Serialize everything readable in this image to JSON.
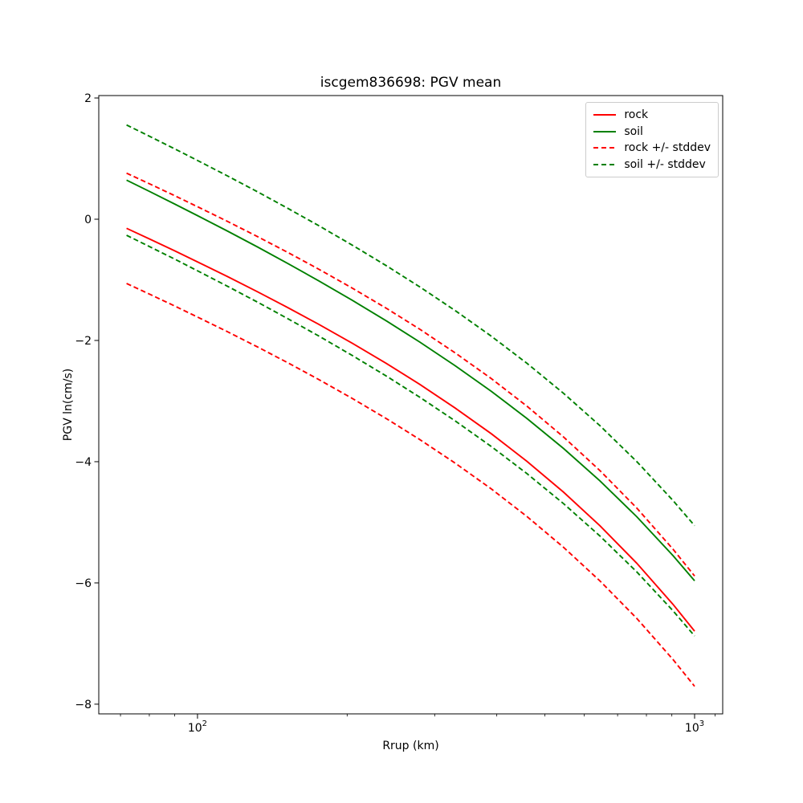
{
  "chart": {
    "title": "iscgem836698: PGV mean",
    "xlabel": "Rrup (km)",
    "ylabel": "PGV ln(cm/s)"
  },
  "chart_data": {
    "type": "line",
    "title": "iscgem836698: PGV mean",
    "xlabel": "Rrup (km)",
    "ylabel": "PGV ln(cm/s)",
    "x_scale": "log",
    "y_scale": "linear",
    "xlim": [
      63.3,
      1139
    ],
    "ylim": [
      -8.16,
      2.04
    ],
    "grid": false,
    "legend_position": "upper right",
    "stddev": 0.91,
    "y_ticks": [
      2,
      0,
      -2,
      -4,
      -6,
      -8
    ],
    "x_major_ticks": [
      {
        "value": 100,
        "base": "10",
        "exp": "2"
      },
      {
        "value": 1000,
        "base": "10",
        "exp": "3"
      }
    ],
    "x_minor_ticks": [
      70,
      80,
      90,
      200,
      300,
      400,
      500,
      600,
      700,
      800,
      900,
      1100
    ],
    "x": [
      72,
      80,
      90,
      100,
      115,
      132,
      152,
      175,
      205,
      240,
      280,
      330,
      390,
      460,
      545,
      645,
      765,
      905,
      1000
    ],
    "series": [
      {
        "id": "rock-mean",
        "color": "#ff0000",
        "style": "solid",
        "values": [
          -0.15,
          -0.324,
          -0.522,
          -0.703,
          -0.947,
          -1.196,
          -1.458,
          -1.73,
          -2.048,
          -2.381,
          -2.725,
          -3.115,
          -3.54,
          -3.994,
          -4.502,
          -5.056,
          -5.675,
          -6.354,
          -6.795
        ]
      },
      {
        "id": "soil-mean",
        "color": "#008000",
        "style": "solid",
        "values": [
          0.645,
          0.46,
          0.251,
          0.06,
          -0.197,
          -0.457,
          -0.731,
          -1.012,
          -1.339,
          -1.678,
          -2.027,
          -2.418,
          -2.84,
          -3.287,
          -3.782,
          -4.316,
          -4.908,
          -5.551,
          -5.965
        ]
      },
      {
        "id": "rock-plus-stddev",
        "color": "#ff0000",
        "style": "dashed",
        "values": [
          0.76,
          0.586,
          0.388,
          0.207,
          -0.037,
          -0.286,
          -0.548,
          -0.82,
          -1.138,
          -1.471,
          -1.815,
          -2.205,
          -2.63,
          -3.084,
          -3.592,
          -4.146,
          -4.765,
          -5.444,
          -5.885
        ]
      },
      {
        "id": "rock-minus-stddev",
        "color": "#ff0000",
        "style": "dashed",
        "values": [
          -1.06,
          -1.234,
          -1.432,
          -1.613,
          -1.857,
          -2.106,
          -2.368,
          -2.64,
          -2.958,
          -3.291,
          -3.635,
          -4.025,
          -4.45,
          -4.904,
          -5.412,
          -5.966,
          -6.585,
          -7.264,
          -7.705
        ]
      },
      {
        "id": "soil-plus-stddev",
        "color": "#008000",
        "style": "dashed",
        "values": [
          1.555,
          1.37,
          1.161,
          0.97,
          0.713,
          0.453,
          0.179,
          -0.102,
          -0.429,
          -0.768,
          -1.117,
          -1.508,
          -1.93,
          -2.377,
          -2.872,
          -3.406,
          -3.998,
          -4.641,
          -5.055
        ]
      },
      {
        "id": "soil-minus-stddev",
        "color": "#008000",
        "style": "dashed",
        "values": [
          -0.265,
          -0.45,
          -0.659,
          -0.85,
          -1.107,
          -1.367,
          -1.641,
          -1.922,
          -2.249,
          -2.588,
          -2.937,
          -3.328,
          -3.75,
          -4.197,
          -4.692,
          -5.226,
          -5.818,
          -6.461,
          -6.875
        ]
      }
    ],
    "legend": [
      {
        "label": "rock",
        "color": "#ff0000",
        "style": "solid"
      },
      {
        "label": "soil",
        "color": "#008000",
        "style": "solid"
      },
      {
        "label": "rock +/- stddev",
        "color": "#ff0000",
        "style": "dashed"
      },
      {
        "label": "soil +/- stddev",
        "color": "#008000",
        "style": "dashed"
      }
    ]
  }
}
